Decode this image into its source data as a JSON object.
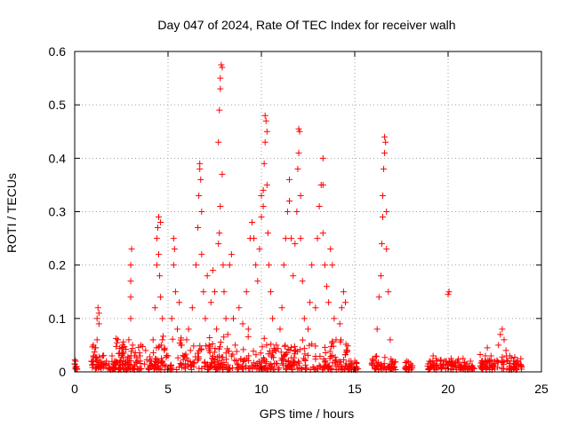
{
  "chart_data": {
    "type": "scatter",
    "title": "Day 047 of 2024, Rate Of TEC Index for receiver walh",
    "xlabel": "GPS time / hours",
    "ylabel": "ROTI / TECUs",
    "xlim": [
      0,
      25
    ],
    "ylim": [
      0,
      0.6
    ],
    "xticks": [
      "0",
      "5",
      "10",
      "15",
      "20",
      "25"
    ],
    "yticks": [
      "0",
      "0.1",
      "0.2",
      "0.3",
      "0.4",
      "0.5",
      "0.6"
    ],
    "grid": true,
    "marker": "+",
    "color": "#ff0000",
    "points": [
      [
        0.0,
        0.015
      ],
      [
        0.05,
        0.02
      ],
      [
        0.1,
        0.01
      ],
      [
        0.1,
        0.005
      ],
      [
        0.9,
        0.02
      ],
      [
        1.0,
        0.03
      ],
      [
        1.0,
        0.05
      ],
      [
        1.1,
        0.045
      ],
      [
        1.2,
        0.06
      ],
      [
        1.2,
        0.1
      ],
      [
        1.25,
        0.12
      ],
      [
        1.3,
        0.11
      ],
      [
        1.3,
        0.09
      ],
      [
        1.4,
        0.02
      ],
      [
        1.5,
        0.03
      ],
      [
        1.7,
        0.02
      ],
      [
        2.0,
        0.03
      ],
      [
        2.2,
        0.02
      ],
      [
        2.4,
        0.035
      ],
      [
        2.6,
        0.02
      ],
      [
        2.9,
        0.06
      ],
      [
        3.0,
        0.1
      ],
      [
        3.0,
        0.14
      ],
      [
        3.0,
        0.17
      ],
      [
        3.0,
        0.2
      ],
      [
        3.05,
        0.23
      ],
      [
        3.1,
        0.05
      ],
      [
        3.2,
        0.03
      ],
      [
        3.5,
        0.03
      ],
      [
        3.8,
        0.04
      ],
      [
        4.0,
        0.02
      ],
      [
        4.2,
        0.06
      ],
      [
        4.3,
        0.12
      ],
      [
        4.4,
        0.2
      ],
      [
        4.4,
        0.25
      ],
      [
        4.45,
        0.27
      ],
      [
        4.5,
        0.29
      ],
      [
        4.5,
        0.22
      ],
      [
        4.55,
        0.18
      ],
      [
        4.6,
        0.14
      ],
      [
        4.6,
        0.28
      ],
      [
        4.7,
        0.1
      ],
      [
        4.7,
        0.06
      ],
      [
        4.8,
        0.04
      ],
      [
        5.0,
        0.03
      ],
      [
        5.2,
        0.1
      ],
      [
        5.3,
        0.2
      ],
      [
        5.3,
        0.25
      ],
      [
        5.35,
        0.23
      ],
      [
        5.4,
        0.15
      ],
      [
        5.5,
        0.08
      ],
      [
        5.6,
        0.13
      ],
      [
        5.7,
        0.05
      ],
      [
        5.9,
        0.03
      ],
      [
        6.0,
        0.06
      ],
      [
        6.1,
        0.08
      ],
      [
        6.2,
        0.04
      ],
      [
        6.3,
        0.12
      ],
      [
        6.5,
        0.2
      ],
      [
        6.6,
        0.27
      ],
      [
        6.65,
        0.33
      ],
      [
        6.7,
        0.38
      ],
      [
        6.7,
        0.39
      ],
      [
        6.75,
        0.36
      ],
      [
        6.8,
        0.3
      ],
      [
        6.8,
        0.22
      ],
      [
        6.9,
        0.15
      ],
      [
        7.0,
        0.1
      ],
      [
        7.1,
        0.18
      ],
      [
        7.2,
        0.05
      ],
      [
        7.3,
        0.13
      ],
      [
        7.4,
        0.19
      ],
      [
        7.5,
        0.15
      ],
      [
        7.6,
        0.08
      ],
      [
        7.7,
        0.43
      ],
      [
        7.75,
        0.49
      ],
      [
        7.8,
        0.53
      ],
      [
        7.8,
        0.55
      ],
      [
        7.85,
        0.575
      ],
      [
        7.9,
        0.57
      ],
      [
        7.9,
        0.37
      ],
      [
        7.8,
        0.31
      ],
      [
        7.75,
        0.26
      ],
      [
        7.7,
        0.24
      ],
      [
        7.95,
        0.2
      ],
      [
        8.0,
        0.15
      ],
      [
        8.1,
        0.1
      ],
      [
        8.2,
        0.07
      ],
      [
        8.3,
        0.2
      ],
      [
        8.4,
        0.22
      ],
      [
        8.5,
        0.1
      ],
      [
        8.6,
        0.05
      ],
      [
        8.8,
        0.12
      ],
      [
        9.0,
        0.09
      ],
      [
        9.2,
        0.15
      ],
      [
        9.3,
        0.08
      ],
      [
        9.4,
        0.25
      ],
      [
        9.5,
        0.28
      ],
      [
        9.6,
        0.25
      ],
      [
        9.7,
        0.2
      ],
      [
        9.8,
        0.17
      ],
      [
        9.9,
        0.23
      ],
      [
        10.0,
        0.29
      ],
      [
        10.0,
        0.33
      ],
      [
        10.1,
        0.31
      ],
      [
        10.1,
        0.34
      ],
      [
        10.15,
        0.39
      ],
      [
        10.2,
        0.43
      ],
      [
        10.2,
        0.48
      ],
      [
        10.25,
        0.47
      ],
      [
        10.3,
        0.45
      ],
      [
        10.3,
        0.35
      ],
      [
        10.35,
        0.26
      ],
      [
        10.4,
        0.2
      ],
      [
        10.5,
        0.15
      ],
      [
        10.6,
        0.1
      ],
      [
        10.8,
        0.05
      ],
      [
        11.0,
        0.08
      ],
      [
        11.1,
        0.12
      ],
      [
        11.2,
        0.2
      ],
      [
        11.3,
        0.25
      ],
      [
        11.4,
        0.3
      ],
      [
        11.5,
        0.36
      ],
      [
        11.5,
        0.32
      ],
      [
        11.6,
        0.25
      ],
      [
        11.7,
        0.18
      ],
      [
        11.8,
        0.24
      ],
      [
        11.9,
        0.3
      ],
      [
        11.95,
        0.38
      ],
      [
        12.0,
        0.41
      ],
      [
        12.05,
        0.45
      ],
      [
        12.0,
        0.455
      ],
      [
        12.1,
        0.33
      ],
      [
        12.1,
        0.25
      ],
      [
        12.2,
        0.17
      ],
      [
        12.3,
        0.1
      ],
      [
        12.5,
        0.08
      ],
      [
        12.6,
        0.13
      ],
      [
        12.7,
        0.2
      ],
      [
        12.9,
        0.12
      ],
      [
        13.0,
        0.25
      ],
      [
        13.1,
        0.31
      ],
      [
        13.2,
        0.35
      ],
      [
        13.3,
        0.35
      ],
      [
        13.3,
        0.4
      ],
      [
        13.3,
        0.26
      ],
      [
        13.4,
        0.2
      ],
      [
        13.5,
        0.16
      ],
      [
        13.6,
        0.13
      ],
      [
        13.7,
        0.23
      ],
      [
        13.8,
        0.2
      ],
      [
        13.9,
        0.1
      ],
      [
        14.0,
        0.06
      ],
      [
        14.2,
        0.09
      ],
      [
        14.3,
        0.12
      ],
      [
        14.4,
        0.15
      ],
      [
        14.5,
        0.13
      ],
      [
        14.6,
        0.04
      ],
      [
        14.7,
        0.02
      ],
      [
        14.8,
        0.02
      ],
      [
        15.0,
        0.02
      ],
      [
        16.0,
        0.02
      ],
      [
        16.2,
        0.08
      ],
      [
        16.3,
        0.14
      ],
      [
        16.4,
        0.18
      ],
      [
        16.45,
        0.24
      ],
      [
        16.5,
        0.29
      ],
      [
        16.5,
        0.33
      ],
      [
        16.55,
        0.38
      ],
      [
        16.6,
        0.41
      ],
      [
        16.6,
        0.44
      ],
      [
        16.65,
        0.43
      ],
      [
        16.7,
        0.3
      ],
      [
        16.7,
        0.23
      ],
      [
        16.8,
        0.15
      ],
      [
        16.9,
        0.06
      ],
      [
        17.0,
        0.02
      ],
      [
        17.1,
        0.01
      ],
      [
        17.8,
        0.02
      ],
      [
        17.9,
        0.01
      ],
      [
        18.0,
        0.015
      ],
      [
        19.0,
        0.02
      ],
      [
        19.2,
        0.03
      ],
      [
        19.4,
        0.02
      ],
      [
        19.6,
        0.015
      ],
      [
        19.8,
        0.02
      ],
      [
        20.0,
        0.145
      ],
      [
        20.05,
        0.15
      ],
      [
        20.2,
        0.02
      ],
      [
        20.5,
        0.02
      ],
      [
        20.8,
        0.025
      ],
      [
        21.0,
        0.015
      ],
      [
        21.2,
        0.02
      ],
      [
        21.8,
        0.02
      ],
      [
        22.0,
        0.03
      ],
      [
        22.1,
        0.045
      ],
      [
        22.3,
        0.03
      ],
      [
        22.5,
        0.02
      ],
      [
        22.7,
        0.05
      ],
      [
        22.8,
        0.07
      ],
      [
        22.9,
        0.08
      ],
      [
        23.0,
        0.06
      ],
      [
        23.1,
        0.04
      ],
      [
        23.3,
        0.03
      ],
      [
        23.5,
        0.02
      ],
      [
        23.7,
        0.015
      ],
      [
        23.9,
        0.01
      ]
    ],
    "bands": [
      {
        "from": 0.0,
        "to": 0.2,
        "max": 0.02
      },
      {
        "from": 0.9,
        "to": 14.7,
        "max": 0.07
      },
      {
        "from": 14.7,
        "to": 15.2,
        "max": 0.02
      },
      {
        "from": 15.9,
        "to": 17.2,
        "max": 0.03
      },
      {
        "from": 17.7,
        "to": 18.1,
        "max": 0.015
      },
      {
        "from": 18.9,
        "to": 21.4,
        "max": 0.025
      },
      {
        "from": 21.7,
        "to": 24.0,
        "max": 0.035
      }
    ]
  }
}
